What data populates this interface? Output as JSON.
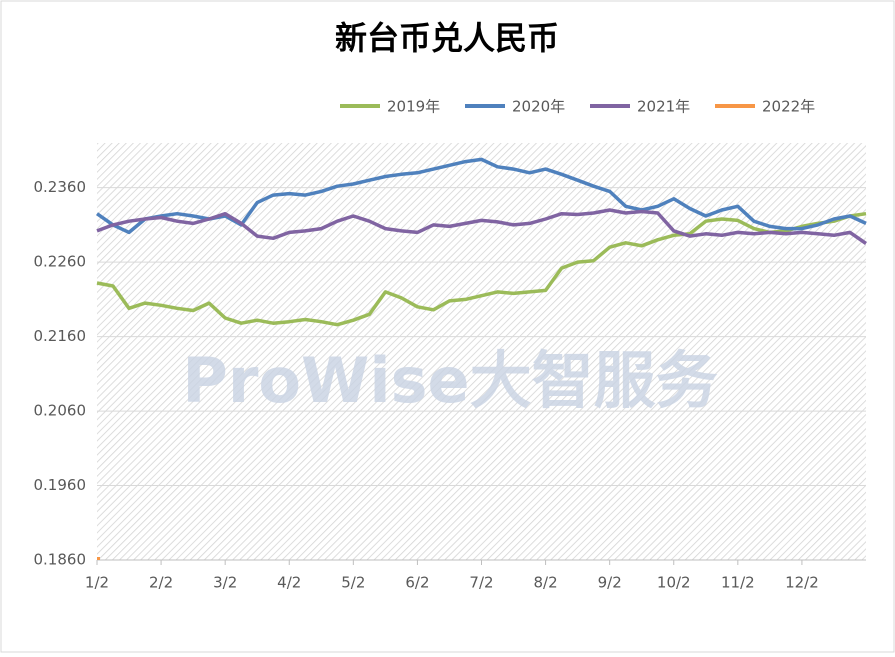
{
  "chart_data": {
    "type": "line",
    "title": "新台币兑人民币",
    "watermark": "ProWise大智服务",
    "categories": [
      "1/2",
      null,
      null,
      null,
      "2/2",
      null,
      null,
      null,
      "3/2",
      null,
      null,
      null,
      "4/2",
      null,
      null,
      null,
      "5/2",
      null,
      null,
      null,
      "6/2",
      null,
      null,
      null,
      "7/2",
      null,
      null,
      null,
      "8/2",
      null,
      null,
      null,
      "9/2",
      null,
      null,
      null,
      "10/2",
      null,
      null,
      null,
      "11/2",
      null,
      null,
      null,
      "12/2",
      null,
      null,
      null,
      null
    ],
    "ylim": [
      0.186,
      0.242
    ],
    "yticks": [
      {
        "value": 0.186,
        "label": "0.1860"
      },
      {
        "value": 0.196,
        "label": "0.1960"
      },
      {
        "value": 0.206,
        "label": "0.2060"
      },
      {
        "value": 0.216,
        "label": "0.2160"
      },
      {
        "value": 0.226,
        "label": "0.2260"
      },
      {
        "value": 0.236,
        "label": "0.2360"
      }
    ],
    "grid": true,
    "legend": "top",
    "series": [
      {
        "name": "2019年",
        "color": "#9bbb59",
        "values": [
          0.2232,
          0.2228,
          0.2198,
          0.2205,
          0.2202,
          0.2198,
          0.2195,
          0.2205,
          0.2185,
          0.2178,
          0.2182,
          0.2178,
          0.218,
          0.2183,
          0.218,
          0.2176,
          0.2182,
          0.219,
          0.222,
          0.2212,
          0.22,
          0.2196,
          0.2208,
          0.221,
          0.2215,
          0.222,
          0.2218,
          0.222,
          0.2222,
          0.2252,
          0.226,
          0.2262,
          0.228,
          0.2286,
          0.2282,
          0.229,
          0.2296,
          0.2298,
          0.2315,
          0.2318,
          0.2316,
          0.2305,
          0.23,
          0.2302,
          0.2308,
          0.2312,
          0.2315,
          0.2322,
          0.2325
        ]
      },
      {
        "name": "2020年",
        "color": "#4f81bd",
        "values": [
          0.2325,
          0.231,
          0.23,
          0.2318,
          0.2322,
          0.2325,
          0.2322,
          0.2318,
          0.2322,
          0.231,
          0.234,
          0.235,
          0.2352,
          0.235,
          0.2355,
          0.2362,
          0.2365,
          0.237,
          0.2375,
          0.2378,
          0.238,
          0.2385,
          0.239,
          0.2395,
          0.2398,
          0.2388,
          0.2385,
          0.238,
          0.2385,
          0.2378,
          0.237,
          0.2362,
          0.2355,
          0.2335,
          0.233,
          0.2335,
          0.2345,
          0.2332,
          0.2322,
          0.233,
          0.2335,
          0.2315,
          0.2308,
          0.2305,
          0.2305,
          0.231,
          0.2318,
          0.2322,
          0.2312
        ]
      },
      {
        "name": "2021年",
        "color": "#8064a2",
        "values": [
          0.2302,
          0.231,
          0.2315,
          0.2318,
          0.232,
          0.2315,
          0.2312,
          0.2318,
          0.2325,
          0.2312,
          0.2295,
          0.2292,
          0.23,
          0.2302,
          0.2305,
          0.2315,
          0.2322,
          0.2315,
          0.2305,
          0.2302,
          0.23,
          0.231,
          0.2308,
          0.2312,
          0.2316,
          0.2314,
          0.231,
          0.2312,
          0.2318,
          0.2325,
          0.2324,
          0.2326,
          0.233,
          0.2326,
          0.2328,
          0.2326,
          0.2302,
          0.2295,
          0.2298,
          0.2296,
          0.23,
          0.2298,
          0.23,
          0.2298,
          0.23,
          0.2298,
          0.2296,
          0.23,
          0.2285
        ]
      },
      {
        "name": "2022年",
        "color": "#f79646",
        "values": [
          0.1862,
          null,
          null,
          null,
          null,
          null,
          null,
          null,
          null,
          null,
          null,
          null,
          null,
          null,
          null,
          null,
          null,
          null,
          null,
          null,
          null,
          null,
          null,
          null,
          null,
          null,
          null,
          null,
          null,
          null,
          null,
          null,
          null,
          null,
          null,
          null,
          null,
          null,
          null,
          null,
          null,
          null,
          null,
          null,
          null,
          null,
          null,
          null,
          null
        ]
      }
    ]
  }
}
